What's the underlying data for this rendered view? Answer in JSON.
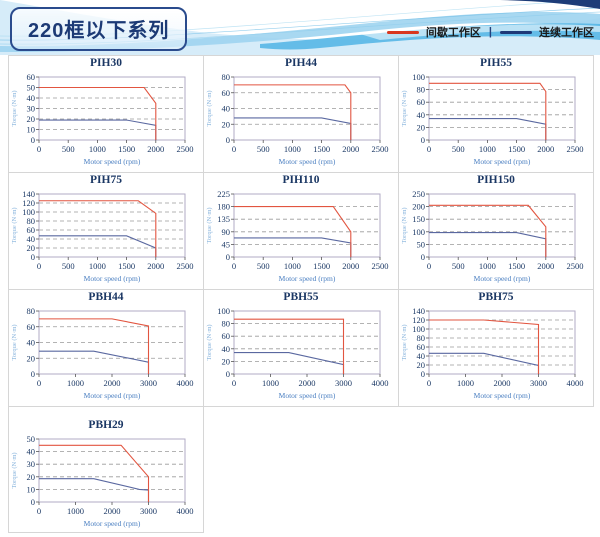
{
  "page": {
    "series_title": "220框以下系列"
  },
  "legend": {
    "intermittent": "间歇工作区",
    "separator": "|",
    "continuous": "连续工作区",
    "intermittent_color": "#d8371f",
    "continuous_color": "#1e3877"
  },
  "chart_defaults": {
    "xlabel": "Motor speed (rpm)",
    "ylabel": "Torque (N·m)",
    "grid": "horizontal-dashed",
    "line_color_intermittent": "#e25540",
    "line_color_continuous": "#5a68a0"
  },
  "chart_data": [
    {
      "type": "line",
      "title": "PIH30",
      "xlabel": "Motor speed (rpm)",
      "ylabel": "Torque (N·m)",
      "xlim": [
        0,
        2500
      ],
      "ylim": [
        0,
        60
      ],
      "xticks": [
        0,
        500,
        1000,
        1500,
        2000,
        2500
      ],
      "yticks": [
        0,
        10,
        20,
        30,
        40,
        50,
        60
      ],
      "series": [
        {
          "name": "间歇工作区",
          "color": "#e25540",
          "points": [
            [
              0,
              50
            ],
            [
              1800,
              50
            ],
            [
              2000,
              35
            ],
            [
              2000,
              0
            ]
          ]
        },
        {
          "name": "连续工作区",
          "color": "#5a68a0",
          "points": [
            [
              0,
              19
            ],
            [
              1500,
              19
            ],
            [
              2000,
              14
            ],
            [
              2000,
              0
            ]
          ]
        }
      ]
    },
    {
      "type": "line",
      "title": "PIH44",
      "xlabel": "Motor speed (rpm)",
      "ylabel": "Torque (N·m)",
      "xlim": [
        0,
        2500
      ],
      "ylim": [
        0,
        80
      ],
      "xticks": [
        0,
        500,
        1000,
        1500,
        2000,
        2500
      ],
      "yticks": [
        0,
        20,
        40,
        60,
        80
      ],
      "series": [
        {
          "name": "间歇工作区",
          "color": "#e25540",
          "points": [
            [
              0,
              70
            ],
            [
              1900,
              70
            ],
            [
              2000,
              60
            ],
            [
              2000,
              0
            ]
          ]
        },
        {
          "name": "连续工作区",
          "color": "#5a68a0",
          "points": [
            [
              0,
              28
            ],
            [
              1500,
              28
            ],
            [
              2000,
              21
            ],
            [
              2000,
              0
            ]
          ]
        }
      ]
    },
    {
      "type": "line",
      "title": "PIH55",
      "xlabel": "Motor speed (rpm)",
      "ylabel": "Torque (N·m)",
      "xlim": [
        0,
        2500
      ],
      "ylim": [
        0,
        100
      ],
      "xticks": [
        0,
        500,
        1000,
        1500,
        2000,
        2500
      ],
      "yticks": [
        0,
        20,
        40,
        60,
        80,
        100
      ],
      "series": [
        {
          "name": "间歇工作区",
          "color": "#e25540",
          "points": [
            [
              0,
              90
            ],
            [
              1900,
              90
            ],
            [
              2000,
              77
            ],
            [
              2000,
              0
            ]
          ]
        },
        {
          "name": "连续工作区",
          "color": "#5a68a0",
          "points": [
            [
              0,
              34
            ],
            [
              1500,
              34
            ],
            [
              2000,
              25
            ],
            [
              2000,
              0
            ]
          ]
        }
      ]
    },
    {
      "type": "line",
      "title": "PIH75",
      "xlabel": "Motor speed (rpm)",
      "ylabel": "Torque (N·m)",
      "xlim": [
        0,
        2500
      ],
      "ylim": [
        0,
        140
      ],
      "xticks": [
        0,
        500,
        1000,
        1500,
        2000,
        2500
      ],
      "yticks": [
        0,
        20,
        40,
        60,
        80,
        100,
        120,
        140
      ],
      "series": [
        {
          "name": "间歇工作区",
          "color": "#e25540",
          "points": [
            [
              0,
              125
            ],
            [
              1700,
              125
            ],
            [
              2000,
              97
            ],
            [
              2000,
              0
            ]
          ]
        },
        {
          "name": "连续工作区",
          "color": "#5a68a0",
          "points": [
            [
              0,
              47
            ],
            [
              1500,
              47
            ],
            [
              2000,
              20
            ],
            [
              2000,
              0
            ]
          ]
        }
      ]
    },
    {
      "type": "line",
      "title": "PIH110",
      "xlabel": "Motor speed (rpm)",
      "ylabel": "Torque (N·m)",
      "xlim": [
        0,
        2500
      ],
      "ylim": [
        0,
        225
      ],
      "xticks": [
        0,
        500,
        1000,
        1500,
        2000,
        2500
      ],
      "yticks": [
        0,
        45,
        90,
        135,
        180,
        225
      ],
      "series": [
        {
          "name": "间歇工作区",
          "color": "#e25540",
          "points": [
            [
              0,
              180
            ],
            [
              1700,
              180
            ],
            [
              2000,
              90
            ],
            [
              2000,
              0
            ]
          ]
        },
        {
          "name": "连续工作区",
          "color": "#5a68a0",
          "points": [
            [
              0,
              68
            ],
            [
              1500,
              68
            ],
            [
              2000,
              50
            ],
            [
              2000,
              0
            ]
          ]
        }
      ]
    },
    {
      "type": "line",
      "title": "PIH150",
      "xlabel": "Motor speed (rpm)",
      "ylabel": "Torque (N·m)",
      "xlim": [
        0,
        2500
      ],
      "ylim": [
        0,
        250
      ],
      "xticks": [
        0,
        500,
        1000,
        1500,
        2000,
        2500
      ],
      "yticks": [
        0,
        50,
        100,
        150,
        200,
        250
      ],
      "series": [
        {
          "name": "间歇工作区",
          "color": "#e25540",
          "points": [
            [
              0,
              205
            ],
            [
              1700,
              205
            ],
            [
              2000,
              120
            ],
            [
              2000,
              0
            ]
          ]
        },
        {
          "name": "连续工作区",
          "color": "#5a68a0",
          "points": [
            [
              0,
              97
            ],
            [
              1500,
              97
            ],
            [
              2000,
              72
            ],
            [
              2000,
              0
            ]
          ]
        }
      ]
    },
    {
      "type": "line",
      "title": "PBH44",
      "xlabel": "Motor speed (rpm)",
      "ylabel": "Torque (N·m)",
      "xlim": [
        0,
        4000
      ],
      "ylim": [
        0,
        80
      ],
      "xticks": [
        0,
        1000,
        2000,
        3000,
        4000
      ],
      "yticks": [
        0,
        20,
        40,
        60,
        80
      ],
      "series": [
        {
          "name": "间歇工作区",
          "color": "#e25540",
          "points": [
            [
              0,
              70
            ],
            [
              2000,
              70
            ],
            [
              3000,
              61
            ],
            [
              3000,
              0
            ]
          ]
        },
        {
          "name": "连续工作区",
          "color": "#5a68a0",
          "points": [
            [
              0,
              29
            ],
            [
              1500,
              29
            ],
            [
              3000,
              15
            ],
            [
              3000,
              0
            ]
          ]
        }
      ]
    },
    {
      "type": "line",
      "title": "PBH55",
      "xlabel": "Motor speed (rpm)",
      "ylabel": "Torque (N·m)",
      "xlim": [
        0,
        4000
      ],
      "ylim": [
        0,
        100
      ],
      "xticks": [
        0,
        1000,
        2000,
        3000,
        4000
      ],
      "yticks": [
        0,
        20,
        40,
        60,
        80,
        100
      ],
      "series": [
        {
          "name": "间歇工作区",
          "color": "#e25540",
          "points": [
            [
              0,
              87
            ],
            [
              3000,
              87
            ],
            [
              3000,
              0
            ]
          ]
        },
        {
          "name": "连续工作区",
          "color": "#5a68a0",
          "points": [
            [
              0,
              34
            ],
            [
              1500,
              34
            ],
            [
              3000,
              15
            ],
            [
              3000,
              0
            ]
          ]
        }
      ]
    },
    {
      "type": "line",
      "title": "PBH75",
      "xlabel": "Motor speed (rpm)",
      "ylabel": "Torque (N·m)",
      "xlim": [
        0,
        4000
      ],
      "ylim": [
        0,
        140
      ],
      "xticks": [
        0,
        1000,
        2000,
        3000,
        4000
      ],
      "yticks": [
        0,
        20,
        40,
        60,
        80,
        100,
        120,
        140
      ],
      "series": [
        {
          "name": "间歇工作区",
          "color": "#e25540",
          "points": [
            [
              0,
              120
            ],
            [
              1500,
              120
            ],
            [
              3000,
              110
            ],
            [
              3000,
              0
            ]
          ]
        },
        {
          "name": "连续工作区",
          "color": "#5a68a0",
          "points": [
            [
              0,
              46
            ],
            [
              1500,
              46
            ],
            [
              3000,
              19
            ],
            [
              3000,
              0
            ]
          ]
        }
      ]
    },
    {
      "type": "line",
      "title": "PBH29",
      "xlabel": "Motor speed (rpm)",
      "ylabel": "Torque (N·m)",
      "xlim": [
        0,
        4000
      ],
      "ylim": [
        0,
        50
      ],
      "xticks": [
        0,
        1000,
        2000,
        3000,
        4000
      ],
      "yticks": [
        0,
        10,
        20,
        30,
        40,
        50
      ],
      "series": [
        {
          "name": "间歇工作区",
          "color": "#e25540",
          "points": [
            [
              0,
              45
            ],
            [
              2250,
              45
            ],
            [
              3000,
              20
            ],
            [
              3000,
              0
            ]
          ]
        },
        {
          "name": "连续工作区",
          "color": "#5a68a0",
          "points": [
            [
              0,
              18.5
            ],
            [
              1500,
              18.5
            ],
            [
              2750,
              10
            ],
            [
              3000,
              9.5
            ],
            [
              3000,
              0
            ]
          ]
        }
      ]
    }
  ]
}
